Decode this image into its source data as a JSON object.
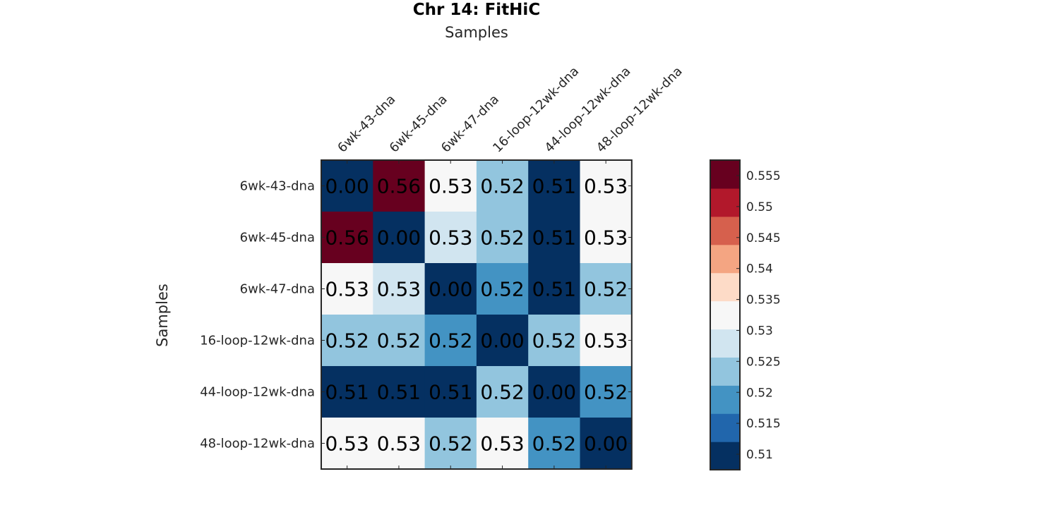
{
  "chart_data": {
    "type": "heatmap",
    "title": "Chr 14: FitHiC",
    "xlabel": "Samples",
    "ylabel": "Samples",
    "x_categories": [
      "6wk-43-dna",
      "6wk-45-dna",
      "6wk-47-dna",
      "16-loop-12wk-dna",
      "44-loop-12wk-dna",
      "48-loop-12wk-dna"
    ],
    "y_categories": [
      "6wk-43-dna",
      "6wk-45-dna",
      "6wk-47-dna",
      "16-loop-12wk-dna",
      "44-loop-12wk-dna",
      "48-loop-12wk-dna"
    ],
    "values": [
      [
        0.0,
        0.56,
        0.53,
        0.52,
        0.51,
        0.53
      ],
      [
        0.56,
        0.0,
        0.53,
        0.52,
        0.51,
        0.53
      ],
      [
        0.53,
        0.53,
        0.0,
        0.52,
        0.51,
        0.52
      ],
      [
        0.52,
        0.52,
        0.52,
        0.0,
        0.52,
        0.53
      ],
      [
        0.51,
        0.51,
        0.51,
        0.52,
        0.0,
        0.52
      ],
      [
        0.53,
        0.53,
        0.52,
        0.53,
        0.52,
        0.0
      ]
    ],
    "value_labels": [
      [
        "0.00",
        "0.56",
        "0.53",
        "0.52",
        "0.51",
        "0.53"
      ],
      [
        "0.56",
        "0.00",
        "0.53",
        "0.52",
        "0.51",
        "0.53"
      ],
      [
        "0.53",
        "0.53",
        "0.00",
        "0.52",
        "0.51",
        "0.52"
      ],
      [
        "0.52",
        "0.52",
        "0.52",
        "0.00",
        "0.52",
        "0.53"
      ],
      [
        "0.51",
        "0.51",
        "0.51",
        "0.52",
        "0.00",
        "0.52"
      ],
      [
        "0.53",
        "0.53",
        "0.52",
        "0.53",
        "0.52",
        "0.00"
      ]
    ],
    "cell_colors": [
      [
        "#053061",
        "#67001f",
        "#f7f7f7",
        "#92c5de",
        "#053061",
        "#f7f7f7"
      ],
      [
        "#67001f",
        "#053061",
        "#d1e5f0",
        "#92c5de",
        "#053061",
        "#f7f7f7"
      ],
      [
        "#f7f7f7",
        "#d1e5f0",
        "#053061",
        "#4393c3",
        "#053061",
        "#92c5de"
      ],
      [
        "#92c5de",
        "#92c5de",
        "#4393c3",
        "#053061",
        "#92c5de",
        "#f7f7f7"
      ],
      [
        "#053061",
        "#053061",
        "#053061",
        "#92c5de",
        "#053061",
        "#4393c3"
      ],
      [
        "#f7f7f7",
        "#f7f7f7",
        "#92c5de",
        "#f7f7f7",
        "#4393c3",
        "#053061"
      ]
    ],
    "colorbar": {
      "range": [
        0.5075,
        0.5575
      ],
      "colors_bottom_to_top": [
        "#053061",
        "#2166ac",
        "#4393c3",
        "#92c5de",
        "#d1e5f0",
        "#f7f7f7",
        "#fddbc7",
        "#f4a582",
        "#d6604d",
        "#b2182b",
        "#67001f"
      ],
      "ticks": [
        0.51,
        0.515,
        0.52,
        0.525,
        0.53,
        0.535,
        0.54,
        0.545,
        0.55,
        0.555
      ],
      "tick_labels": [
        "0.51",
        "0.515",
        "0.52",
        "0.525",
        "0.53",
        "0.535",
        "0.54",
        "0.545",
        "0.55",
        "0.555"
      ]
    }
  }
}
